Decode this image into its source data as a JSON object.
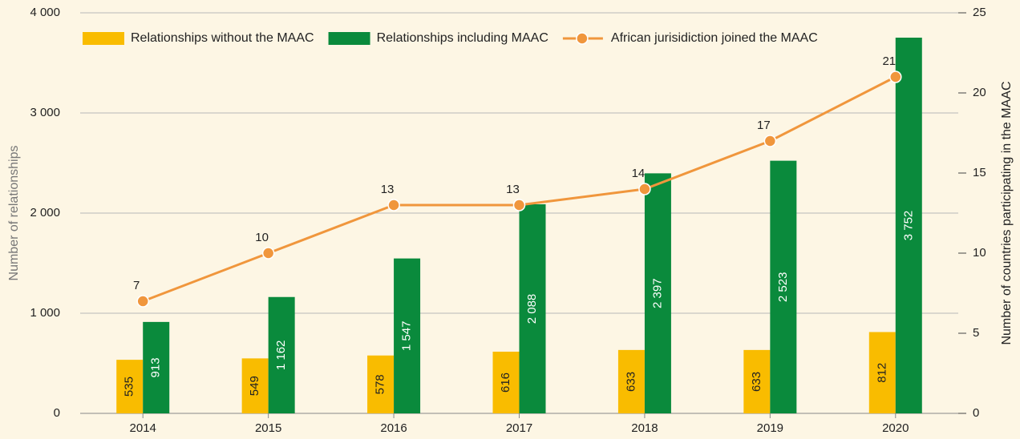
{
  "chart_data": {
    "type": "bar",
    "categories": [
      "2014",
      "2015",
      "2016",
      "2017",
      "2018",
      "2019",
      "2020"
    ],
    "series": [
      {
        "name": "Relationships without the MAAC",
        "color": "#f9bc00",
        "values": [
          535,
          549,
          578,
          616,
          633,
          633,
          812
        ]
      },
      {
        "name": "Relationships including MAAC",
        "color": "#0a8a3c",
        "values": [
          913,
          1162,
          1547,
          2088,
          2397,
          2523,
          3752
        ],
        "value_labels": [
          "913",
          "1 162",
          "1 547",
          "2 088",
          "2 397",
          "2 523",
          "3 752"
        ]
      },
      {
        "name": "African jurisidiction joined the MAAC",
        "color": "#f0963c",
        "type": "line",
        "axis": "y2",
        "values": [
          7,
          10,
          13,
          13,
          14,
          17,
          21
        ]
      }
    ],
    "ylabel": "Number of relationships",
    "y2label": "Number of countries participating in the MAAC",
    "ylim": [
      0,
      4000
    ],
    "yticks": [
      0,
      {
        "value": 1000,
        "label": "1 000"
      },
      {
        "value": 2000,
        "label": "2 000"
      },
      {
        "value": 3000,
        "label": "3 000"
      },
      {
        "value": 4000,
        "label": "4 000"
      }
    ],
    "y2lim": [
      0,
      25
    ],
    "y2ticks": [
      0,
      5,
      10,
      15,
      20,
      25
    ],
    "grid": true
  }
}
